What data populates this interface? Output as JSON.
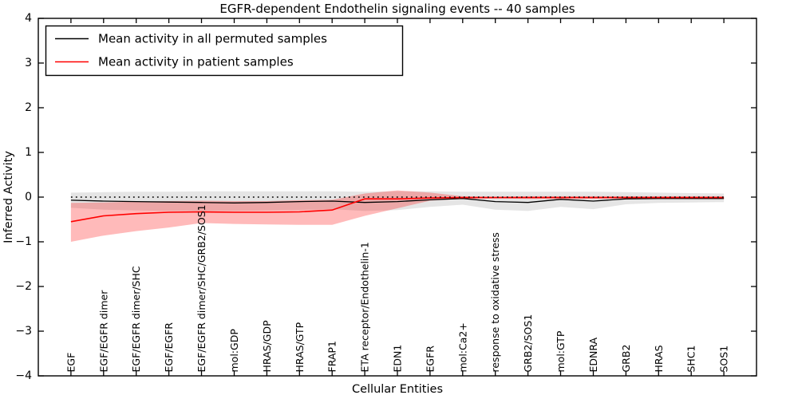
{
  "title": "EGFR-dependent Endothelin signaling events -- 40 samples",
  "legend": {
    "position": "upper left",
    "entries": [
      {
        "label": "Mean activity in all permuted samples",
        "color": "#000000"
      },
      {
        "label": "Mean activity in patient samples",
        "color": "#ff0000"
      }
    ]
  },
  "chart_data": {
    "type": "line",
    "title": "EGFR-dependent Endothelin signaling events -- 40 samples",
    "xlabel": "Cellular Entities",
    "ylabel": "Inferred Activity",
    "ylim": [
      -4,
      4
    ],
    "xlim": [
      -1,
      21
    ],
    "yticks": [
      4,
      3,
      2,
      1,
      0,
      -1,
      -2,
      -3,
      -4
    ],
    "ytick_labels": [
      "4",
      "3",
      "2",
      "1",
      "0",
      "−1",
      "−2",
      "−3",
      "−4"
    ],
    "grid": false,
    "zero_line": {
      "value": 0,
      "style": "dotted",
      "color": "#000000"
    },
    "categories": [
      "EGF",
      "EGF/EGFR dimer",
      "EGF/EGFR dimer/SHC",
      "EGF/EGFR",
      "EGF/EGFR dimer/SHC/GRB2/SOS1",
      "mol:GDP",
      "HRAS/GDP",
      "HRAS/GTP",
      "FRAP1",
      "ETA receptor/Endothelin-1",
      "EDN1",
      "EGFR",
      "mol:Ca2+",
      "response to oxidative stress",
      "GRB2/SOS1",
      "mol:GTP",
      "EDNRA",
      "GRB2",
      "HRAS",
      "SHC1",
      "SOS1"
    ],
    "series": [
      {
        "name": "Mean activity in all permuted samples",
        "color": "#000000",
        "line_width": 1.3,
        "values": [
          -0.07,
          -0.09,
          -0.1,
          -0.11,
          -0.12,
          -0.13,
          -0.12,
          -0.1,
          -0.09,
          -0.12,
          -0.1,
          -0.06,
          -0.03,
          -0.1,
          -0.12,
          -0.05,
          -0.09,
          -0.04,
          -0.03,
          -0.03,
          -0.03
        ],
        "band": {
          "upper": [
            0.1,
            0.11,
            0.12,
            0.12,
            0.13,
            0.13,
            0.13,
            0.13,
            0.13,
            0.12,
            0.13,
            0.13,
            0.12,
            0.12,
            0.12,
            0.12,
            0.12,
            0.11,
            0.1,
            0.09,
            0.08
          ],
          "lower": [
            -0.24,
            -0.28,
            -0.3,
            -0.31,
            -0.31,
            -0.31,
            -0.3,
            -0.29,
            -0.27,
            -0.31,
            -0.29,
            -0.22,
            -0.17,
            -0.28,
            -0.31,
            -0.22,
            -0.27,
            -0.16,
            -0.13,
            -0.12,
            -0.11
          ],
          "color": "#000000",
          "alpha": 0.1
        }
      },
      {
        "name": "Mean activity in patient samples",
        "color": "#ff0000",
        "line_width": 1.6,
        "values": [
          -0.55,
          -0.42,
          -0.37,
          -0.34,
          -0.33,
          -0.34,
          -0.34,
          -0.33,
          -0.29,
          -0.04,
          -0.04,
          -0.02,
          -0.01,
          -0.01,
          -0.01,
          -0.01,
          -0.01,
          -0.01,
          -0.01,
          -0.01,
          -0.01
        ],
        "band": {
          "upper": [
            -0.13,
            -0.12,
            -0.1,
            -0.09,
            -0.08,
            -0.09,
            -0.09,
            -0.07,
            -0.06,
            0.08,
            0.15,
            0.1,
            0.02,
            0.01,
            0.02,
            0.02,
            0.02,
            0.02,
            0.02,
            0.02,
            0.02
          ],
          "lower": [
            -1.0,
            -0.86,
            -0.76,
            -0.68,
            -0.58,
            -0.6,
            -0.61,
            -0.62,
            -0.62,
            -0.42,
            -0.25,
            -0.08,
            -0.04,
            -0.03,
            -0.04,
            -0.04,
            -0.04,
            -0.03,
            -0.03,
            -0.03,
            -0.03
          ],
          "color": "#ff0000",
          "alpha": 0.27
        }
      }
    ]
  }
}
